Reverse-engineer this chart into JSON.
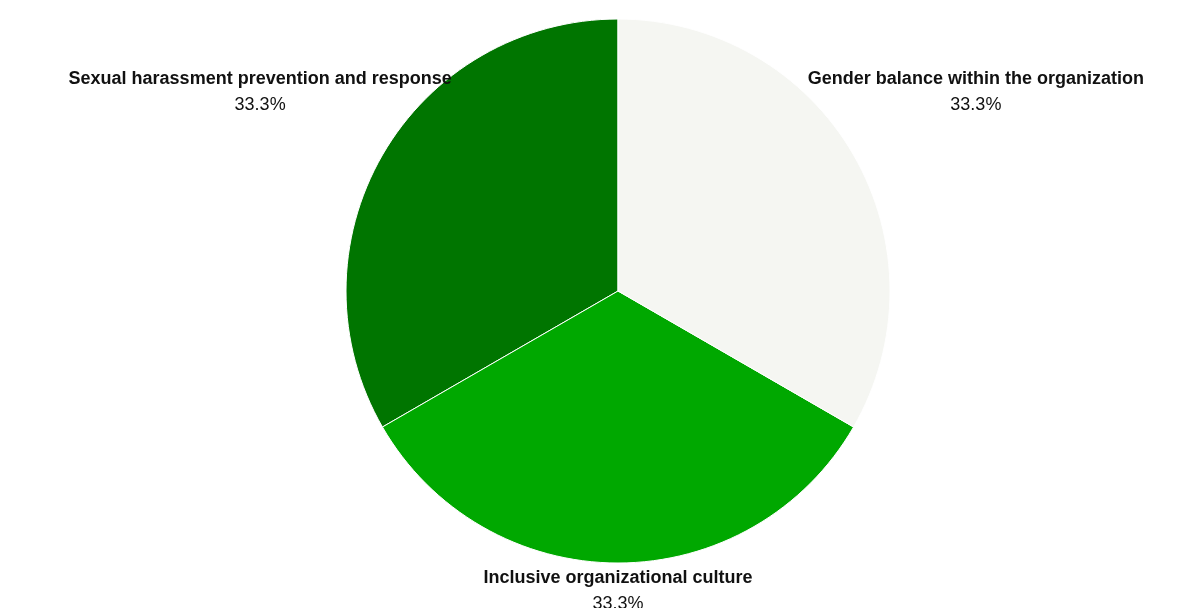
{
  "chart_data": {
    "type": "pie",
    "categories": [
      "Sexual harassment prevention and response",
      "Inclusive organizational culture",
      "Gender balance within the organization"
    ],
    "values": [
      33.3,
      33.3,
      33.3
    ],
    "value_labels": [
      "33.3%",
      "33.3%",
      "33.3%"
    ],
    "colors": [
      "#007500",
      "#00a800",
      "#f5f6f2"
    ],
    "legend": false
  }
}
